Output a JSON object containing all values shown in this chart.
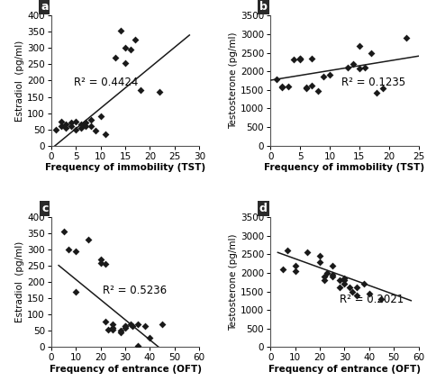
{
  "panel_a": {
    "label": "a",
    "x": [
      1,
      2,
      2,
      3,
      3,
      4,
      4,
      5,
      5,
      6,
      6,
      7,
      7,
      8,
      8,
      9,
      10,
      11,
      13,
      14,
      15,
      15,
      16,
      17,
      18,
      22
    ],
    "y": [
      50,
      60,
      75,
      55,
      65,
      60,
      70,
      50,
      75,
      65,
      55,
      70,
      60,
      80,
      60,
      45,
      90,
      35,
      270,
      355,
      300,
      255,
      295,
      325,
      170,
      165
    ],
    "r2": "R² = 0.4424",
    "r2_x": 4.5,
    "r2_y": 185,
    "xlabel": "Frequency of immobility (TST)",
    "ylabel": "Estradiol  (pg/ml)",
    "xlim": [
      0,
      30
    ],
    "ylim": [
      0,
      400
    ],
    "xticks": [
      0,
      5,
      10,
      15,
      20,
      25,
      30
    ],
    "yticks": [
      0,
      50,
      100,
      150,
      200,
      250,
      300,
      350,
      400
    ],
    "line_x0": 0,
    "line_x1": 28,
    "line_slope": 12.5,
    "line_intercept": -10
  },
  "panel_b": {
    "label": "b",
    "x": [
      1,
      2,
      2,
      3,
      4,
      5,
      5,
      5,
      6,
      6,
      7,
      7,
      8,
      9,
      10,
      13,
      14,
      15,
      15,
      16,
      17,
      18,
      19,
      23
    ],
    "y": [
      1780,
      1560,
      1580,
      1600,
      2310,
      2340,
      2350,
      2330,
      1550,
      1570,
      1620,
      2340,
      1470,
      1870,
      1900,
      2110,
      2200,
      2680,
      2080,
      2100,
      2500,
      1420,
      1540,
      2900
    ],
    "r2": "R² = 0.1235",
    "r2_x": 12.0,
    "r2_y": 1620,
    "xlabel": "Frequency of immobility (TST)",
    "ylabel": "Testosterone (pg/ml)",
    "xlim": [
      0,
      25
    ],
    "ylim": [
      0,
      3500
    ],
    "xticks": [
      0,
      5,
      10,
      15,
      20,
      25
    ],
    "yticks": [
      0,
      500,
      1000,
      1500,
      2000,
      2500,
      3000,
      3500
    ],
    "line_x0": 0,
    "line_x1": 25,
    "line_slope": 26.0,
    "line_intercept": 1760
  },
  "panel_c": {
    "label": "c",
    "x": [
      5,
      7,
      10,
      10,
      15,
      20,
      20,
      22,
      22,
      23,
      25,
      25,
      25,
      28,
      28,
      30,
      30,
      30,
      32,
      33,
      35,
      35,
      38,
      40,
      45
    ],
    "y": [
      355,
      300,
      295,
      170,
      330,
      260,
      270,
      255,
      80,
      55,
      55,
      60,
      70,
      50,
      45,
      65,
      60,
      65,
      70,
      65,
      70,
      5,
      65,
      30,
      70
    ],
    "r2": "R² = 0.5236",
    "r2_x": 21,
    "r2_y": 165,
    "xlabel": "Frequency of entrance (OFT)",
    "ylabel": "Estradiol  (pg/ml)",
    "xlim": [
      0,
      60
    ],
    "ylim": [
      0,
      400
    ],
    "xticks": [
      0,
      10,
      20,
      30,
      40,
      50,
      60
    ],
    "yticks": [
      0,
      50,
      100,
      150,
      200,
      250,
      300,
      350,
      400
    ],
    "line_x0": 3,
    "line_x1": 55,
    "line_slope": -6.2,
    "line_intercept": 270
  },
  "panel_d": {
    "label": "d",
    "x": [
      5,
      7,
      10,
      10,
      15,
      20,
      20,
      22,
      22,
      23,
      25,
      25,
      25,
      28,
      28,
      30,
      30,
      30,
      32,
      33,
      35,
      35,
      38,
      40,
      45
    ],
    "y": [
      2100,
      2600,
      2200,
      2050,
      2550,
      2450,
      2300,
      1900,
      1800,
      2000,
      1950,
      1900,
      2200,
      1800,
      1600,
      1850,
      1800,
      1700,
      1600,
      1500,
      1600,
      1400,
      1700,
      1450,
      1300
    ],
    "r2": "R² = 0.2021",
    "r2_x": 28,
    "r2_y": 1200,
    "xlabel": "Frequency of entrance (OFT)",
    "ylabel": "Testosterone (pg/ml)",
    "xlim": [
      0,
      60
    ],
    "ylim": [
      0,
      3500
    ],
    "xticks": [
      0,
      10,
      20,
      30,
      40,
      50,
      60
    ],
    "yticks": [
      0,
      500,
      1000,
      1500,
      2000,
      2500,
      3000,
      3500
    ],
    "line_x0": 3,
    "line_x1": 57,
    "line_slope": -24.0,
    "line_intercept": 2620
  },
  "marker_color": "#1a1a1a",
  "line_color": "#1a1a1a",
  "bg_color": "#ffffff",
  "font_size_label": 7.5,
  "font_size_annot": 8.5,
  "font_size_tick": 7.5,
  "font_size_panel": 9
}
